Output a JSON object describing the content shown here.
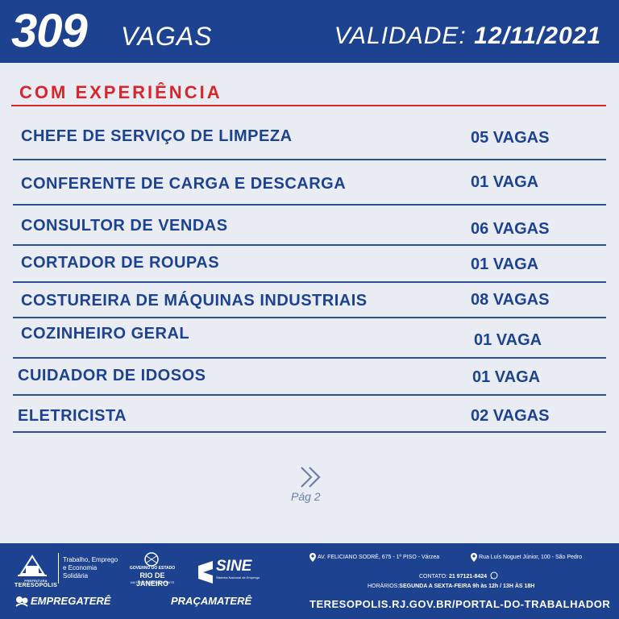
{
  "header": {
    "count": "309",
    "vagas_label": "VAGAS",
    "validade_label": "VALIDADE:",
    "validade_date": "12/11/2021",
    "bg_color": "#1d4290"
  },
  "section": {
    "title": "COM EXPERIÊNCIA",
    "accent_color": "#d8262c"
  },
  "jobs": [
    {
      "title": "CHEFE DE SERVIÇO DE LIMPEZA",
      "count": "05 VAGAS"
    },
    {
      "title": "CONFERENTE DE CARGA E DESCARGA",
      "count": "01 VAGA"
    },
    {
      "title": "CONSULTOR DE VENDAS",
      "count": "06 VAGAS"
    },
    {
      "title": "CORTADOR DE ROUPAS",
      "count": "01 VAGA"
    },
    {
      "title": "COSTUREIRA DE MÁQUINAS INDUSTRIAIS",
      "count": "08 VAGAS"
    },
    {
      "title": "COZINHEIRO GERAL",
      "count": "01 VAGA"
    },
    {
      "title": "CUIDADOR DE IDOSOS",
      "count": "01 VAGA"
    },
    {
      "title": "ELETRICISTA",
      "count": "02 VAGAS"
    }
  ],
  "pagination": {
    "icon": "double-chevron-right-icon",
    "label": "Pág 2"
  },
  "footer": {
    "prefeitura_small": "PREFEITURA",
    "prefeitura_name": "TERESÓPOLIS",
    "secretaria": "Trabalho, Emprego e Economia Solidária",
    "rj_gov": "GOVERNO DO ESTADO",
    "rj_name": "RIO DE JANEIRO",
    "rj_sub": "UM NOVO TEMPO A FRENTE",
    "sine": "SINE",
    "sine_sub": "Sistema Nacional de Emprego",
    "empregatere": "EMPREGATERÊ",
    "pracamatere": "PRAÇAMATERÊ",
    "address1": "AV. FELICIANO SODRÉ, 675 - 1º PISO - Várzea",
    "address2": "Rua Luís Noguet Júnior, 100 - São Pedro",
    "contato_label": "CONTATO:",
    "contato_phone": "21 97121-8424",
    "horarios_label": "HORÁRIOS:",
    "horarios_value": "SEGUNDA A SEXTA-FEIRA  9h às 12h / 13H ÀS 18H",
    "url": "TERESOPOLIS.RJ.GOV.BR/PORTAL-DO-TRABALHADOR"
  }
}
